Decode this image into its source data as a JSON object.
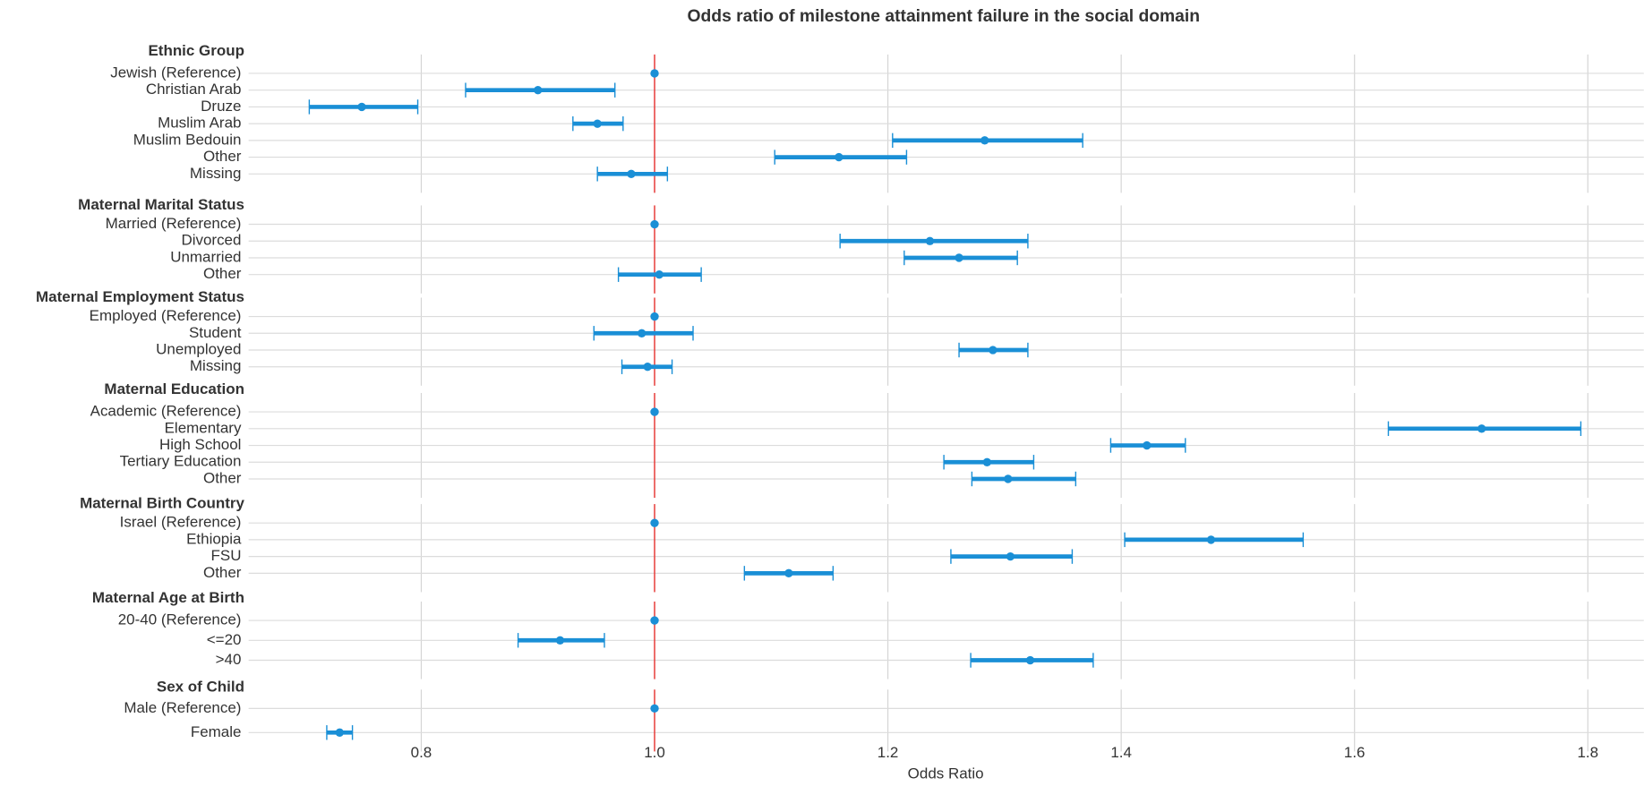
{
  "chart_data": {
    "type": "forest",
    "title": "Odds ratio of milestone attainment failure in the social domain",
    "x_label": "Odds Ratio",
    "xlim": [
      0.652,
      1.848
    ],
    "xticks": [
      0.8,
      {
        "value": 1,
        "label": "1.0"
      },
      1.2,
      1.4,
      1.6,
      1.8
    ],
    "reference_line": 1,
    "reference_color": "#e8312f",
    "color": "#1a8fd6",
    "grid": true,
    "groups": [
      {
        "name": "Ethnic Group",
        "rows": [
          {
            "label": "Jewish (Reference)",
            "value": 1,
            "ci_low": null,
            "ci_high": null
          },
          {
            "label": "Christian Arab",
            "value": 0.9,
            "ci_low": 0.838,
            "ci_high": 0.966
          },
          {
            "label": "Druze",
            "value": 0.749,
            "ci_low": 0.704,
            "ci_high": 0.797
          },
          {
            "label": "Muslim Arab",
            "value": 0.951,
            "ci_low": 0.93,
            "ci_high": 0.973
          },
          {
            "label": "Muslim Bedouin",
            "value": 1.283,
            "ci_low": 1.204,
            "ci_high": 1.367
          },
          {
            "label": "Other",
            "value": 1.158,
            "ci_low": 1.103,
            "ci_high": 1.216
          },
          {
            "label": "Missing",
            "value": 0.98,
            "ci_low": 0.951,
            "ci_high": 1.011
          }
        ]
      },
      {
        "name": "Maternal Marital Status",
        "rows": [
          {
            "label": "Married (Reference)",
            "value": 1,
            "ci_low": null,
            "ci_high": null
          },
          {
            "label": "Divorced",
            "value": 1.236,
            "ci_low": 1.159,
            "ci_high": 1.32
          },
          {
            "label": "Unmarried",
            "value": 1.261,
            "ci_low": 1.214,
            "ci_high": 1.311
          },
          {
            "label": "Other",
            "value": 1.004,
            "ci_low": 0.969,
            "ci_high": 1.04
          }
        ]
      },
      {
        "name": "Maternal Employment Status",
        "rows": [
          {
            "label": "Employed (Reference)",
            "value": 1,
            "ci_low": null,
            "ci_high": null
          },
          {
            "label": "Student",
            "value": 0.989,
            "ci_low": 0.948,
            "ci_high": 1.033
          },
          {
            "label": "Unemployed",
            "value": 1.29,
            "ci_low": 1.261,
            "ci_high": 1.32
          },
          {
            "label": "Missing",
            "value": 0.994,
            "ci_low": 0.972,
            "ci_high": 1.015
          }
        ]
      },
      {
        "name": "Maternal Education",
        "rows": [
          {
            "label": "Academic (Reference)",
            "value": 1,
            "ci_low": null,
            "ci_high": null
          },
          {
            "label": "Elementary",
            "value": 1.709,
            "ci_low": 1.629,
            "ci_high": 1.794
          },
          {
            "label": "High School",
            "value": 1.422,
            "ci_low": 1.391,
            "ci_high": 1.455
          },
          {
            "label": "Tertiary Education",
            "value": 1.285,
            "ci_low": 1.248,
            "ci_high": 1.325
          },
          {
            "label": "Other",
            "value": 1.303,
            "ci_low": 1.272,
            "ci_high": 1.361
          }
        ]
      },
      {
        "name": "Maternal Birth Country",
        "rows": [
          {
            "label": "Israel (Reference)",
            "value": 1,
            "ci_low": null,
            "ci_high": null
          },
          {
            "label": "Ethiopia",
            "value": 1.477,
            "ci_low": 1.403,
            "ci_high": 1.556
          },
          {
            "label": "FSU",
            "value": 1.305,
            "ci_low": 1.254,
            "ci_high": 1.358
          },
          {
            "label": "Other",
            "value": 1.115,
            "ci_low": 1.077,
            "ci_high": 1.153
          }
        ]
      },
      {
        "name": "Maternal Age at Birth",
        "rows": [
          {
            "label": "20-40 (Reference)",
            "value": 1,
            "ci_low": null,
            "ci_high": null
          },
          {
            "label": "<=20",
            "value": 0.919,
            "ci_low": 0.883,
            "ci_high": 0.957
          },
          {
            "label": ">40",
            "value": 1.322,
            "ci_low": 1.271,
            "ci_high": 1.376
          }
        ]
      },
      {
        "name": "Sex of Child",
        "rows": [
          {
            "label": "Male (Reference)",
            "value": 1,
            "ci_low": null,
            "ci_high": null
          },
          {
            "label": "Female",
            "value": 0.73,
            "ci_low": 0.719,
            "ci_high": 0.741
          }
        ]
      }
    ]
  }
}
